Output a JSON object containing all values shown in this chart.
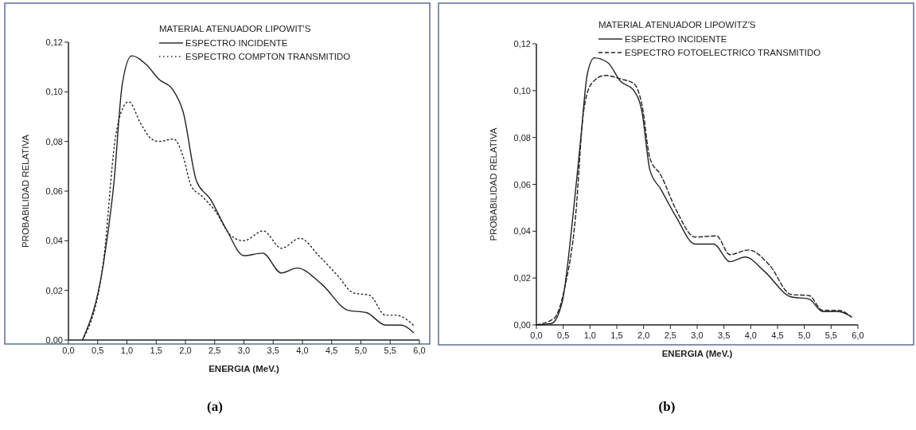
{
  "chart_data": [
    {
      "type": "line",
      "xlabel": "ENERGIA (MeV.)",
      "ylabel": "PROBABILIDAD RELATIVA",
      "legend_title": "MATERIAL ATENUADOR LIPOWIT'S",
      "legend": "top right",
      "grid": false,
      "annotations": [
        "(a)"
      ],
      "xlim": [
        0,
        6
      ],
      "ylim": [
        0,
        0.12
      ],
      "xticks": [
        {
          "value": 0,
          "label": "0,0"
        },
        {
          "value": 0.5,
          "label": "0,5"
        },
        {
          "value": 1,
          "label": "1,0"
        },
        {
          "value": 1.5,
          "label": "1,5"
        },
        {
          "value": 2,
          "label": "2,0"
        },
        {
          "value": 2.5,
          "label": "2,5"
        },
        {
          "value": 3,
          "label": "3,0"
        },
        {
          "value": 3.5,
          "label": "3,5"
        },
        {
          "value": 4,
          "label": "4,0"
        },
        {
          "value": 4.5,
          "label": "4,5"
        },
        {
          "value": 5,
          "label": "5,0"
        },
        {
          "value": 5.5,
          "label": "5,5"
        },
        {
          "value": 6,
          "label": "6,0"
        }
      ],
      "yticks": [
        {
          "value": 0,
          "label": "0,00"
        },
        {
          "value": 0.02,
          "label": "0,02"
        },
        {
          "value": 0.04,
          "label": "0,04"
        },
        {
          "value": 0.06,
          "label": "0,06"
        },
        {
          "value": 0.08,
          "label": "0,08"
        },
        {
          "value": 0.1,
          "label": "0,10"
        },
        {
          "value": 0.12,
          "label": "0,12"
        }
      ],
      "series": [
        {
          "name": "ESPECTRO INCIDENTE",
          "color": "#222222",
          "line_style": "solid",
          "x": [
            0.24,
            0.6,
            0.78,
            0.92,
            1.08,
            1.33,
            1.55,
            1.78,
            1.96,
            2.19,
            2.42,
            2.69,
            3.0,
            3.32,
            3.64,
            3.91,
            4.33,
            4.78,
            5.1,
            5.42,
            5.69,
            5.9
          ],
          "values": [
            0,
            0.031,
            0.064,
            0.103,
            0.1145,
            0.111,
            0.105,
            0.101,
            0.092,
            0.064,
            0.057,
            0.045,
            0.034,
            0.035,
            0.027,
            0.029,
            0.0225,
            0.012,
            0.011,
            0.006,
            0.006,
            0.003
          ]
        },
        {
          "name": "ESPECTRO COMPTON TRANSMITIDO",
          "color": "#222222",
          "line_style": "dotted",
          "x": [
            0.24,
            0.6,
            0.8,
            0.92,
            1.03,
            1.24,
            1.42,
            1.55,
            1.8,
            1.96,
            2.1,
            2.28,
            2.51,
            2.78,
            3.0,
            3.33,
            3.64,
            3.96,
            4.28,
            4.6,
            4.87,
            5.15,
            5.42,
            5.6,
            5.9
          ],
          "values": [
            0,
            0.032,
            0.081,
            0.093,
            0.096,
            0.087,
            0.081,
            0.08,
            0.081,
            0.074,
            0.062,
            0.058,
            0.052,
            0.042,
            0.04,
            0.044,
            0.037,
            0.041,
            0.034,
            0.026,
            0.019,
            0.018,
            0.01,
            0.01,
            0.006
          ]
        }
      ]
    },
    {
      "type": "line",
      "xlabel": "ENERGIA (MeV.)",
      "ylabel": "PROBABILIDAD RELATIVA",
      "legend_title": "MATERIAL ATENUADOR LIPOWITZ'S",
      "legend": "top right",
      "grid": false,
      "annotations": [
        "(b)"
      ],
      "xlim": [
        0,
        6
      ],
      "ylim": [
        0,
        0.12
      ],
      "xticks": [
        {
          "value": 0,
          "label": "0,0"
        },
        {
          "value": 0.5,
          "label": "0,5"
        },
        {
          "value": 1,
          "label": "1,0"
        },
        {
          "value": 1.5,
          "label": "1,5"
        },
        {
          "value": 2,
          "label": "2,0"
        },
        {
          "value": 2.5,
          "label": "2,5"
        },
        {
          "value": 3,
          "label": "3,0"
        },
        {
          "value": 3.5,
          "label": "3,5"
        },
        {
          "value": 4,
          "label": "4,0"
        },
        {
          "value": 4.5,
          "label": "4,5"
        },
        {
          "value": 5,
          "label": "5,0"
        },
        {
          "value": 5.5,
          "label": "5,5"
        },
        {
          "value": 6,
          "label": "6,0"
        }
      ],
      "yticks": [
        {
          "value": 0,
          "label": "0,00"
        },
        {
          "value": 0.02,
          "label": "0,02"
        },
        {
          "value": 0.04,
          "label": "0,04"
        },
        {
          "value": 0.06,
          "label": "0,06"
        },
        {
          "value": 0.08,
          "label": "0,08"
        },
        {
          "value": 0.1,
          "label": "0,10"
        },
        {
          "value": 0.12,
          "label": "0,12"
        }
      ],
      "series": [
        {
          "name": "ESPECTRO INCIDENTE",
          "color": "#222222",
          "line_style": "solid",
          "x": [
            0,
            0.28,
            0.48,
            0.68,
            0.83,
            0.95,
            1.08,
            1.33,
            1.57,
            1.82,
            1.97,
            2.12,
            2.32,
            2.61,
            2.96,
            3.31,
            3.61,
            3.9,
            4.25,
            4.75,
            5.09,
            5.34,
            5.64,
            5.88
          ],
          "values": [
            0,
            0.0006,
            0.0096,
            0.046,
            0.08,
            0.107,
            0.114,
            0.112,
            0.104,
            0.1,
            0.091,
            0.066,
            0.058,
            0.046,
            0.0345,
            0.0345,
            0.027,
            0.029,
            0.023,
            0.012,
            0.011,
            0.0057,
            0.0057,
            0.0034
          ]
        },
        {
          "name": "ESPECTRO FOTOELECTRICO TRANSMITIDO",
          "color": "#222222",
          "line_style": "dashed",
          "x": [
            0,
            0.33,
            0.53,
            0.73,
            0.88,
            1.03,
            1.28,
            1.57,
            1.82,
            1.97,
            2.12,
            2.32,
            2.61,
            2.96,
            3.36,
            3.61,
            3.96,
            4.35,
            4.75,
            5.09,
            5.34,
            5.64,
            5.88
          ],
          "values": [
            0,
            0.0028,
            0.016,
            0.046,
            0.091,
            0.103,
            0.1065,
            0.105,
            0.103,
            0.094,
            0.071,
            0.064,
            0.049,
            0.0375,
            0.038,
            0.03,
            0.032,
            0.0255,
            0.013,
            0.0125,
            0.0062,
            0.0062,
            0.0034
          ]
        }
      ]
    }
  ]
}
